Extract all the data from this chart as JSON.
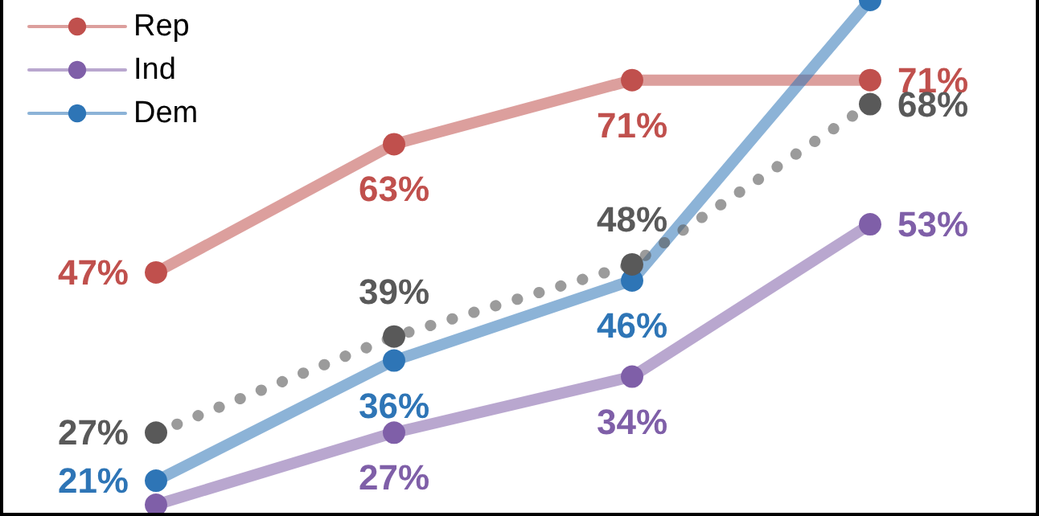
{
  "chart_data": {
    "type": "line",
    "categories": [
      null,
      null,
      null,
      null
    ],
    "ylim": [
      17,
      81
    ],
    "legend": "top left",
    "marker": "circle",
    "series": [
      {
        "name": "Rep",
        "color": "#c0504d",
        "values": [
          47,
          63,
          71,
          71
        ],
        "value_labels": [
          "47%",
          "63%",
          "71%",
          "71%"
        ]
      },
      {
        "name": "Ind",
        "color": "#7f5fa8",
        "values": [
          18,
          27,
          34,
          53
        ],
        "value_labels": [
          null,
          "27%",
          "34%",
          "53%"
        ]
      },
      {
        "name": "Dem",
        "color": "#2e75b6",
        "values": [
          21,
          36,
          46,
          81
        ],
        "value_labels": [
          "21%",
          "36%",
          "46%",
          null
        ]
      },
      {
        "color": "#595959",
        "line_style": "dotted",
        "values": [
          27,
          39,
          48,
          68
        ],
        "value_labels": [
          "27%",
          "39%",
          "48%",
          "68%"
        ]
      }
    ]
  }
}
